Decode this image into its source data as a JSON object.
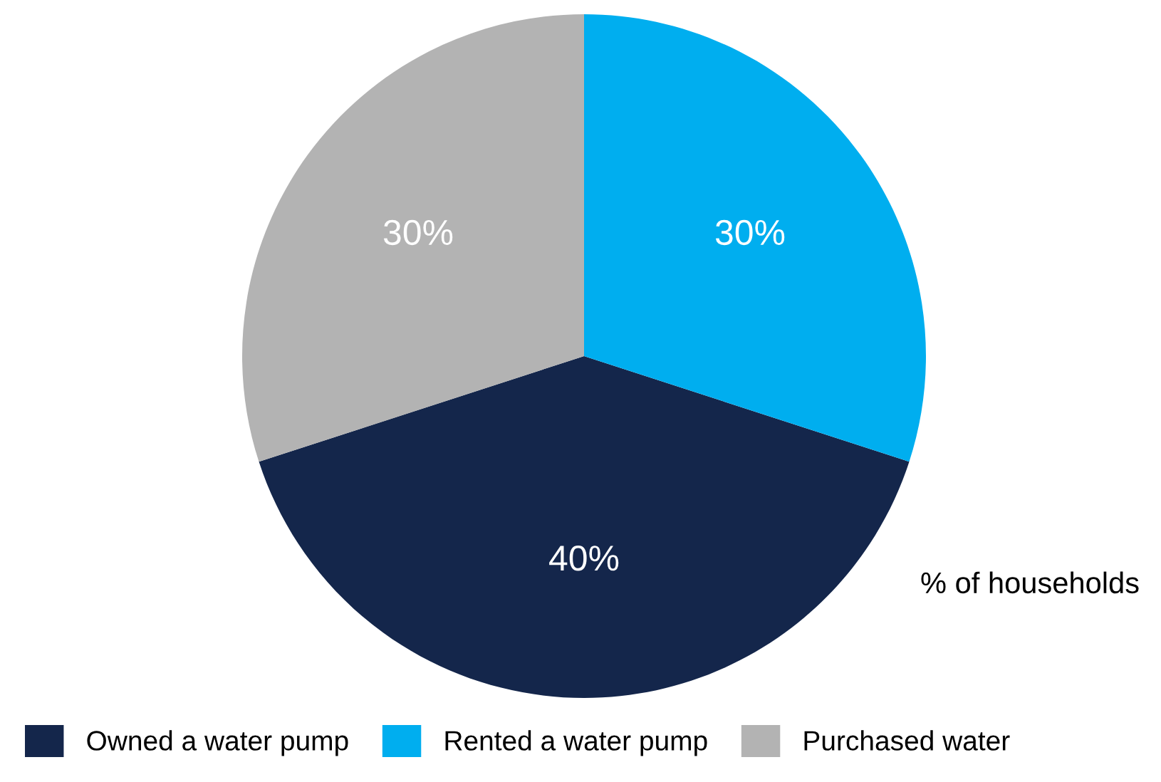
{
  "chart_data": {
    "type": "pie",
    "categories": [
      "Owned a water pump",
      "Rented a water pump",
      "Purchased water"
    ],
    "values": [
      40,
      30,
      30
    ],
    "colors": [
      "#14264b",
      "#00aeef",
      "#b3b3b3"
    ],
    "value_labels": [
      "40%",
      "30%",
      "30%"
    ],
    "annotations": [
      "% of households"
    ],
    "legend": "bottom"
  }
}
